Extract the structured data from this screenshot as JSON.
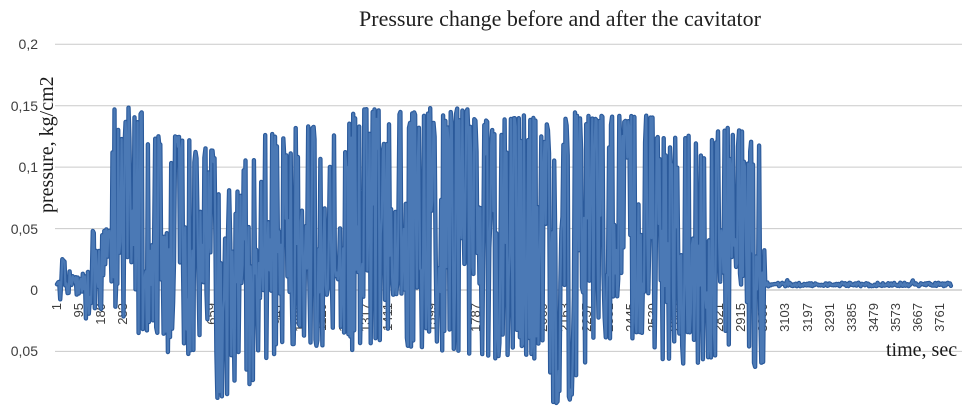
{
  "page": {
    "background": "#ffffff"
  },
  "chart_data": {
    "type": "line",
    "title": "Pressure change before and after the cavitator",
    "xlabel": "time, sec",
    "ylabel": "pressure, kg/cm2",
    "decimal_separator": ",",
    "grid": true,
    "legend": false,
    "xlim": [
      1,
      3810
    ],
    "ylim": [
      -0.09,
      0.2
    ],
    "x_tick_step": 94,
    "x_ticks": [
      1,
      95,
      189,
      283,
      377,
      471,
      565,
      659,
      753,
      847,
      941,
      1035,
      1129,
      1223,
      1317,
      1411,
      1505,
      1599,
      1693,
      1787,
      1881,
      1975,
      2069,
      2163,
      2257,
      2351,
      2445,
      2539,
      2633,
      2727,
      2821,
      2915,
      3009,
      3103,
      3197,
      3291,
      3385,
      3479,
      3573,
      3667,
      3761
    ],
    "y_ticks": [
      {
        "label": "0,2",
        "value": 0.2
      },
      {
        "label": "0,15",
        "value": 0.15
      },
      {
        "label": "0,1",
        "value": 0.1
      },
      {
        "label": "0,05",
        "value": 0.05
      },
      {
        "label": "0",
        "value": 0
      },
      {
        "label": "0,05",
        "value": -0.05
      }
    ],
    "gridline_color": "#cacaca",
    "zero_axis_color": "#b3b3b3",
    "series": [
      {
        "name": "pressure",
        "color": "#4b79b5",
        "edge_color": "#2b5a9b",
        "description": "Dense noisy pressure signal, ~3800 samples. Envelope segments: t0,t1 = time range; lo/hi = extreme dip/spike values (kg/cm2); mass = typical oscillation band; spike_p/dip_p = fraction of samples spiking to hi / dipping to lo. Signal oscillates strongly until t=3009, then flat near 0.005.",
        "envelope": [
          {
            "t0": 1,
            "t1": 14,
            "lo": -0.004,
            "hi": 0.012,
            "mass": [
              0.004,
              0.01
            ],
            "spike_p": 0,
            "dip_p": 0
          },
          {
            "t0": 14,
            "t1": 22,
            "lo": -0.008,
            "hi": 0.012,
            "mass": [
              0.002,
              0.01
            ],
            "spike_p": 0,
            "dip_p": 0.3
          },
          {
            "t0": 22,
            "t1": 34,
            "lo": 0.0,
            "hi": 0.046,
            "mass": [
              0.005,
              0.035
            ],
            "spike_p": 0.5,
            "dip_p": 0
          },
          {
            "t0": 34,
            "t1": 105,
            "lo": -0.004,
            "hi": 0.02,
            "mass": [
              0.003,
              0.013
            ],
            "spike_p": 0.08,
            "dip_p": 0.1
          },
          {
            "t0": 105,
            "t1": 145,
            "lo": -0.027,
            "hi": 0.032,
            "mass": [
              -0.008,
              0.02
            ],
            "spike_p": 0.15,
            "dip_p": 0.22
          },
          {
            "t0": 145,
            "t1": 235,
            "lo": -0.016,
            "hi": 0.05,
            "mass": [
              0.0,
              0.035
            ],
            "spike_p": 0.28,
            "dip_p": 0.15
          },
          {
            "t0": 235,
            "t1": 330,
            "lo": -0.022,
            "hi": 0.15,
            "mass": [
              0.0,
              0.065
            ],
            "spike_p": 0.32,
            "dip_p": 0.18
          },
          {
            "t0": 330,
            "t1": 465,
            "lo": -0.036,
            "hi": 0.147,
            "mass": [
              -0.005,
              0.07
            ],
            "spike_p": 0.34,
            "dip_p": 0.18
          },
          {
            "t0": 465,
            "t1": 595,
            "lo": -0.052,
            "hi": 0.126,
            "mass": [
              -0.01,
              0.06
            ],
            "spike_p": 0.3,
            "dip_p": 0.2
          },
          {
            "t0": 595,
            "t1": 678,
            "lo": -0.04,
            "hi": 0.117,
            "mass": [
              -0.005,
              0.065
            ],
            "spike_p": 0.34,
            "dip_p": 0.16
          },
          {
            "t0": 678,
            "t1": 772,
            "lo": -0.088,
            "hi": 0.082,
            "mass": [
              -0.02,
              0.05
            ],
            "spike_p": 0.24,
            "dip_p": 0.26
          },
          {
            "t0": 772,
            "t1": 872,
            "lo": -0.077,
            "hi": 0.106,
            "mass": [
              -0.015,
              0.055
            ],
            "spike_p": 0.28,
            "dip_p": 0.26
          },
          {
            "t0": 872,
            "t1": 1005,
            "lo": -0.062,
            "hi": 0.127,
            "mass": [
              -0.01,
              0.06
            ],
            "spike_p": 0.3,
            "dip_p": 0.2
          },
          {
            "t0": 1005,
            "t1": 1255,
            "lo": -0.046,
            "hi": 0.137,
            "mass": [
              -0.006,
              0.07
            ],
            "spike_p": 0.34,
            "dip_p": 0.2
          },
          {
            "t0": 1255,
            "t1": 1455,
            "lo": -0.056,
            "hi": 0.15,
            "mass": [
              -0.01,
              0.072
            ],
            "spike_p": 0.35,
            "dip_p": 0.2
          },
          {
            "t0": 1455,
            "t1": 1755,
            "lo": -0.05,
            "hi": 0.148,
            "mass": [
              -0.006,
              0.075
            ],
            "spike_p": 0.37,
            "dip_p": 0.2
          },
          {
            "t0": 1755,
            "t1": 2090,
            "lo": -0.056,
            "hi": 0.143,
            "mass": [
              -0.01,
              0.07
            ],
            "spike_p": 0.35,
            "dip_p": 0.2
          },
          {
            "t0": 2090,
            "t1": 2262,
            "lo": -0.092,
            "hi": 0.145,
            "mass": [
              -0.012,
              0.066
            ],
            "spike_p": 0.32,
            "dip_p": 0.23
          },
          {
            "t0": 2262,
            "t1": 2542,
            "lo": -0.04,
            "hi": 0.142,
            "mass": [
              -0.006,
              0.07
            ],
            "spike_p": 0.35,
            "dip_p": 0.2
          },
          {
            "t0": 2542,
            "t1": 2782,
            "lo": -0.06,
            "hi": 0.126,
            "mass": [
              -0.02,
              0.055
            ],
            "spike_p": 0.3,
            "dip_p": 0.28
          },
          {
            "t0": 2782,
            "t1": 2932,
            "lo": -0.056,
            "hi": 0.132,
            "mass": [
              -0.015,
              0.06
            ],
            "spike_p": 0.31,
            "dip_p": 0.26
          },
          {
            "t0": 2932,
            "t1": 3014,
            "lo": -0.07,
            "hi": 0.121,
            "mass": [
              -0.02,
              0.05
            ],
            "spike_p": 0.3,
            "dip_p": 0.3
          },
          {
            "t0": 3014,
            "t1": 3048,
            "lo": 0.002,
            "hi": 0.009,
            "mass": [
              0.003,
              0.007
            ],
            "spike_p": 0,
            "dip_p": 0
          },
          {
            "t0": 3048,
            "t1": 3810,
            "lo": 0.002,
            "hi": 0.008,
            "mass": [
              0.003,
              0.006
            ],
            "spike_p": 0.02,
            "dip_p": 0
          }
        ]
      }
    ]
  }
}
